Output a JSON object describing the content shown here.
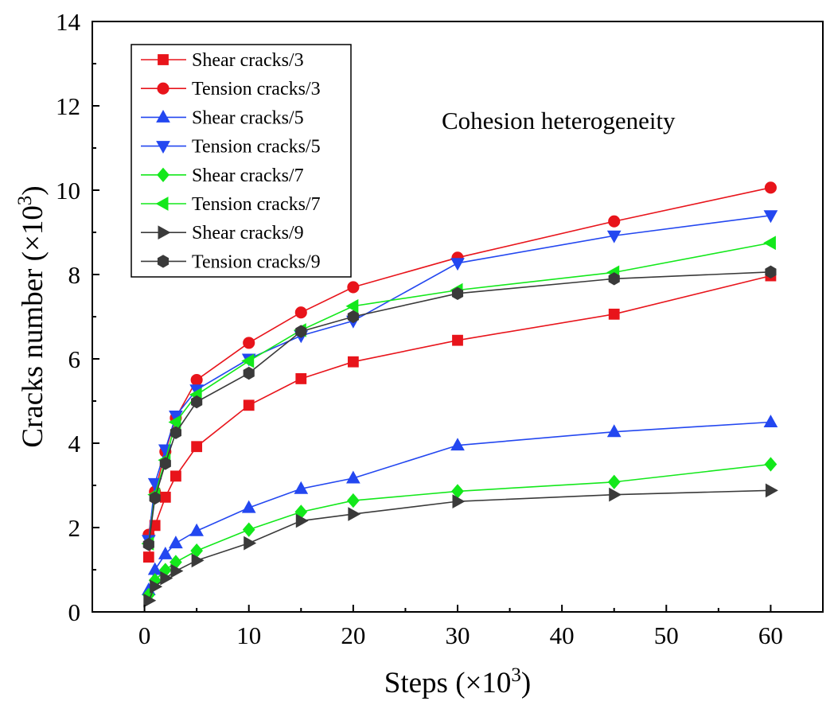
{
  "chart_data": {
    "type": "line",
    "xlabel": "Steps (×10",
    "xlabel_sup": "3",
    "xlabel_end": ")",
    "ylabel": "Cracks number (×10",
    "ylabel_sup": "3",
    "ylabel_end": ")",
    "xlim": [
      -5,
      65
    ],
    "ylim": [
      0,
      14
    ],
    "xticks": [
      0,
      10,
      20,
      30,
      40,
      50,
      60
    ],
    "yticks": [
      0,
      2,
      4,
      6,
      8,
      10,
      12,
      14
    ],
    "x": [
      0.4,
      1,
      2,
      3,
      5,
      10,
      15,
      20,
      30,
      45,
      60
    ],
    "annotation": "Cohesion heterogeneity",
    "legend_position": "top-left",
    "series": [
      {
        "name": "Shear cracks/3",
        "color": "#e8141b",
        "marker": "square",
        "values": [
          1.3,
          2.05,
          2.72,
          3.22,
          3.92,
          4.9,
          5.53,
          5.93,
          6.44,
          7.06,
          7.97
        ]
      },
      {
        "name": "Tension cracks/3",
        "color": "#e8141b",
        "marker": "circle",
        "values": [
          1.83,
          2.85,
          3.8,
          4.6,
          5.5,
          6.38,
          7.1,
          7.7,
          8.4,
          9.26,
          10.06
        ]
      },
      {
        "name": "Shear cracks/5",
        "color": "#2347f0",
        "marker": "triangle-up",
        "values": [
          0.52,
          1.0,
          1.37,
          1.63,
          1.92,
          2.47,
          2.92,
          3.17,
          3.95,
          4.27,
          4.5
        ]
      },
      {
        "name": "Tension cracks/5",
        "color": "#2347f0",
        "marker": "triangle-down",
        "values": [
          1.7,
          3.05,
          3.85,
          4.65,
          5.27,
          6.0,
          6.55,
          6.9,
          8.27,
          8.92,
          9.4
        ]
      },
      {
        "name": "Shear cracks/7",
        "color": "#13e81b",
        "marker": "diamond",
        "values": [
          0.4,
          0.75,
          0.99,
          1.18,
          1.45,
          1.95,
          2.37,
          2.64,
          2.86,
          3.08,
          3.5
        ]
      },
      {
        "name": "Tension cracks/7",
        "color": "#13e81b",
        "marker": "triangle-left",
        "values": [
          1.62,
          2.78,
          3.6,
          4.5,
          5.15,
          5.95,
          6.68,
          7.25,
          7.63,
          8.05,
          8.75
        ]
      },
      {
        "name": "Shear cracks/9",
        "color": "#3a3a3a",
        "marker": "triangle-right",
        "values": [
          0.27,
          0.6,
          0.8,
          0.97,
          1.22,
          1.63,
          2.16,
          2.32,
          2.62,
          2.78,
          2.88
        ]
      },
      {
        "name": "Tension cracks/9",
        "color": "#3a3a3a",
        "marker": "hexagon",
        "values": [
          1.6,
          2.7,
          3.52,
          4.25,
          4.98,
          5.66,
          6.65,
          7.0,
          7.55,
          7.9,
          8.06
        ]
      }
    ]
  }
}
